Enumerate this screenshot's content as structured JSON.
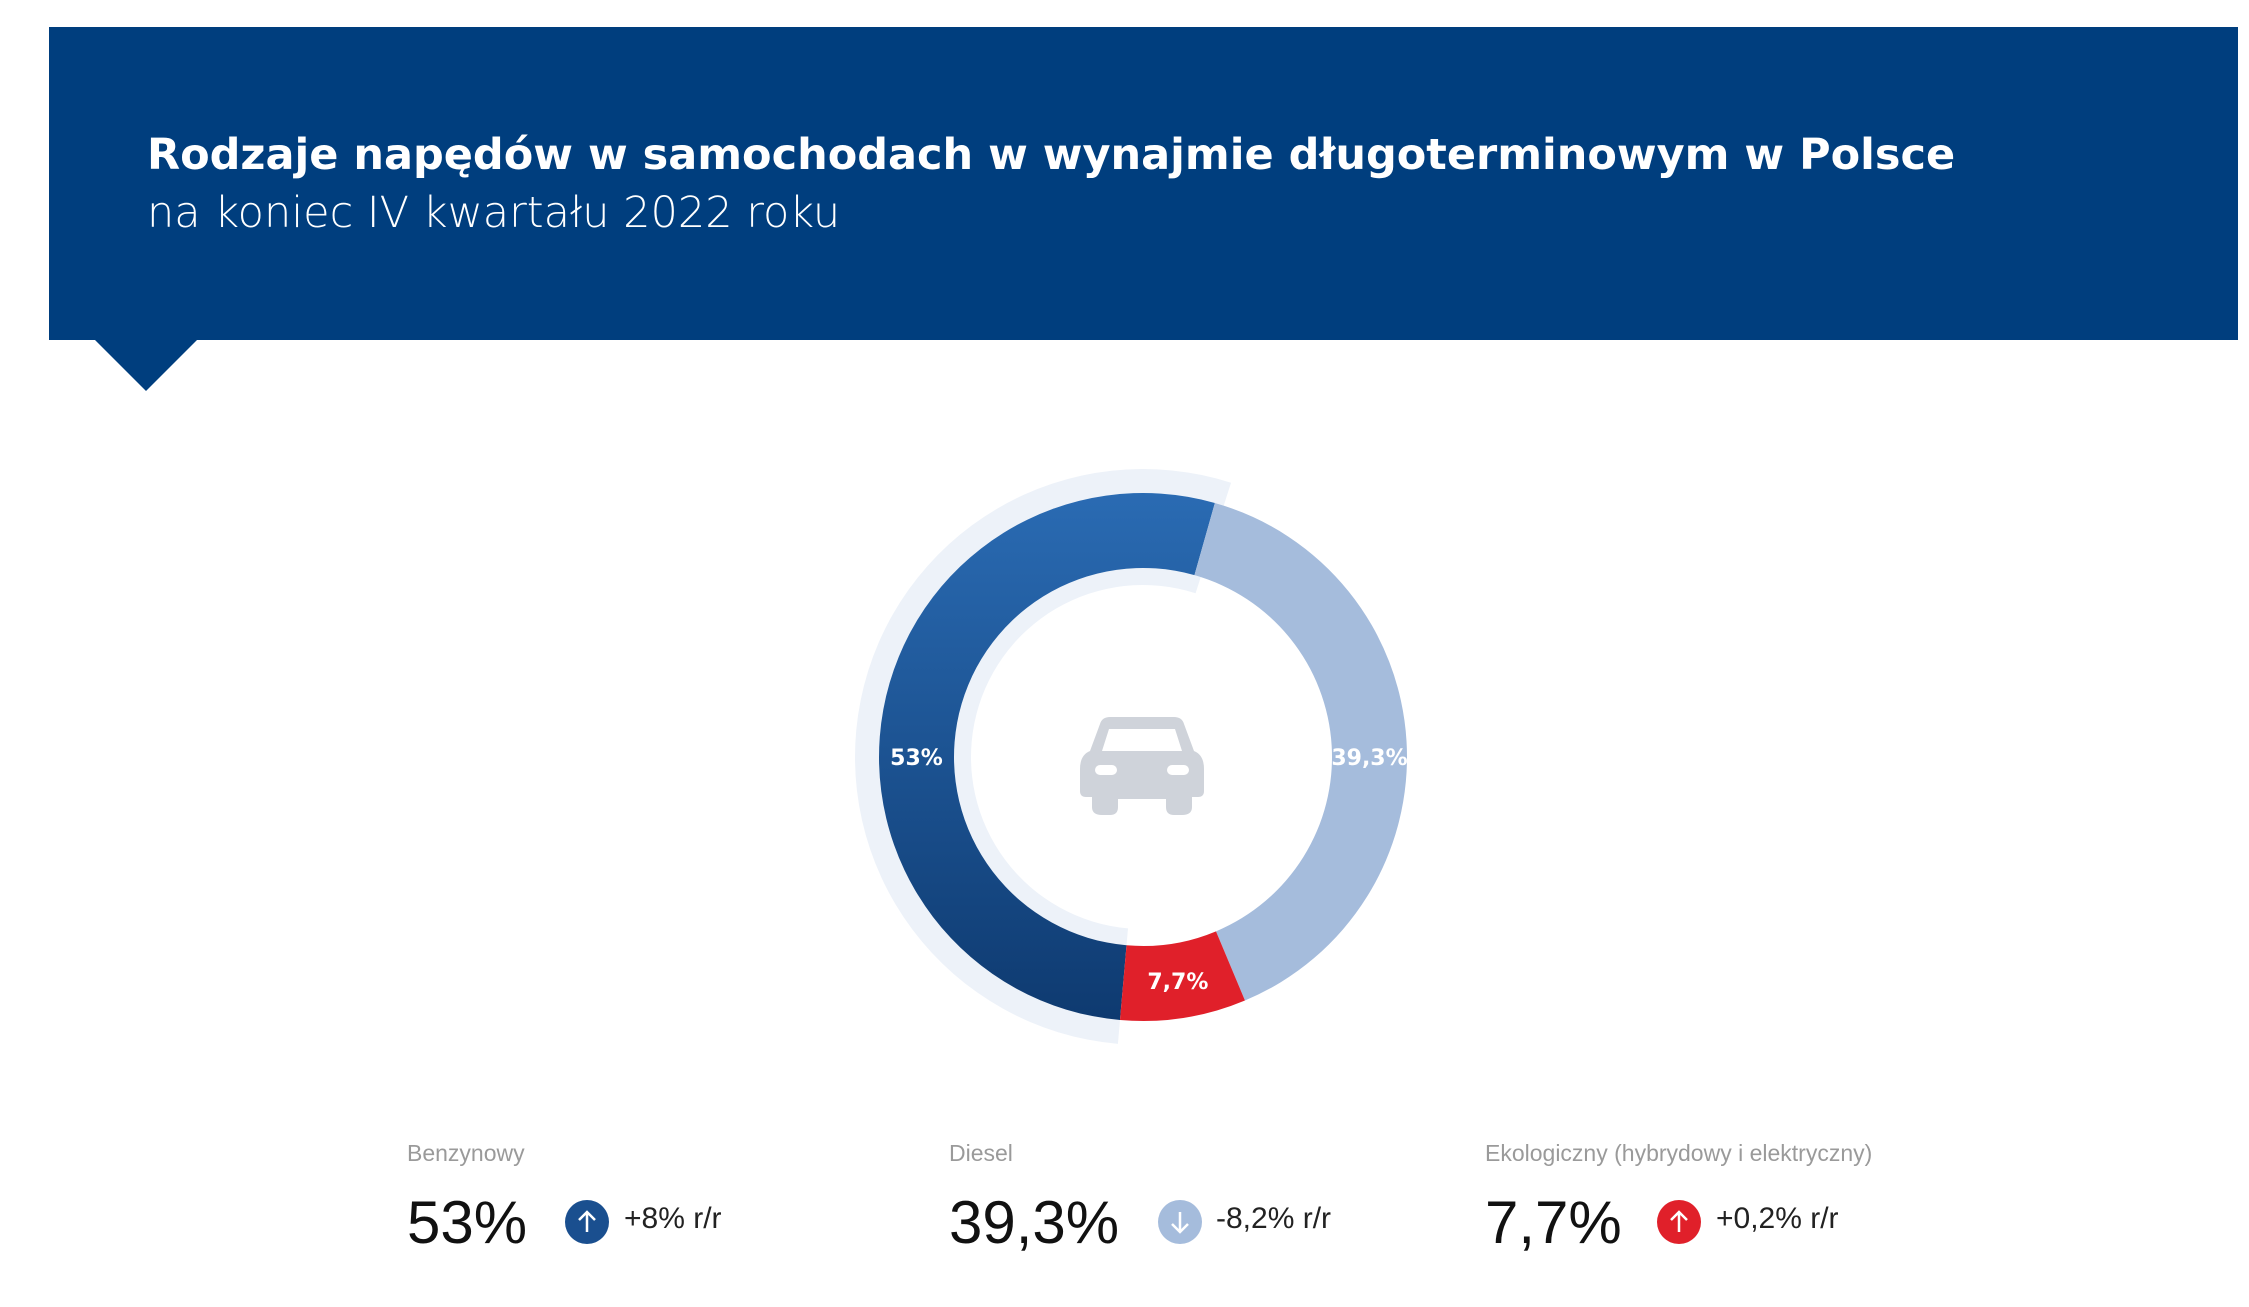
{
  "header": {
    "title": "Rodzaje napędów w samochodach w wynajmie długoterminowym w Polsce",
    "subtitle": "na koniec IV kwartału 2022 roku"
  },
  "chart_data": {
    "type": "pie",
    "variant": "donut",
    "title": "Rodzaje napędów w samochodach w wynajmie długoterminowym w Polsce",
    "center_icon": "car-icon",
    "slices": [
      {
        "name": "Benzynowy",
        "value": 53,
        "label": "53%",
        "color": "#1a4f8f"
      },
      {
        "name": "Diesel",
        "value": 39.3,
        "label": "39,3%",
        "color": "#a5bcdc"
      },
      {
        "name": "Ekologiczny (hybrydowy i elektryczny)",
        "value": 7.7,
        "label": "7,7%",
        "color": "#e0202a"
      }
    ]
  },
  "stats": [
    {
      "label": "Benzynowy",
      "value": "53%",
      "direction": "up",
      "change": "+8% r/r",
      "color": "#1a4f8f"
    },
    {
      "label": "Diesel",
      "value": "39,3%",
      "direction": "down",
      "change": "-8,2% r/r",
      "color": "#a5bcdc"
    },
    {
      "label": "Ekologiczny (hybrydowy i elektryczny)",
      "value": "7,7%",
      "direction": "up",
      "change": "+0,2% r/r",
      "color": "#e0202a"
    }
  ]
}
